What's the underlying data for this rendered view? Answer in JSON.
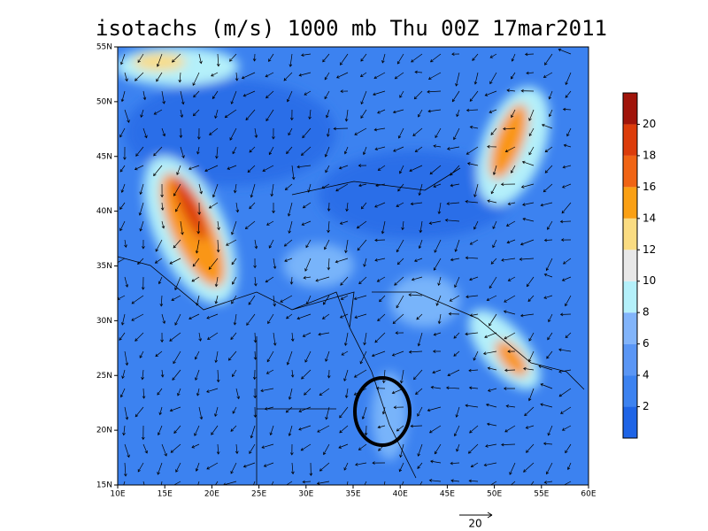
{
  "title": "isotachs (m/s) 1000 mb Thu 00Z 17mar2011",
  "map": {
    "lat_labels": [
      "55N",
      "50N",
      "45N",
      "40N",
      "35N",
      "30N",
      "25N",
      "20N",
      "15N"
    ],
    "lon_labels": [
      "10E",
      "15E",
      "20E",
      "25E",
      "30E",
      "35E",
      "40E",
      "45E",
      "50E",
      "55E",
      "60E"
    ]
  },
  "colorbar": {
    "labels": [
      2,
      4,
      6,
      8,
      10,
      12,
      14,
      16,
      18,
      20
    ]
  },
  "reference_vector": {
    "label": "20"
  }
}
